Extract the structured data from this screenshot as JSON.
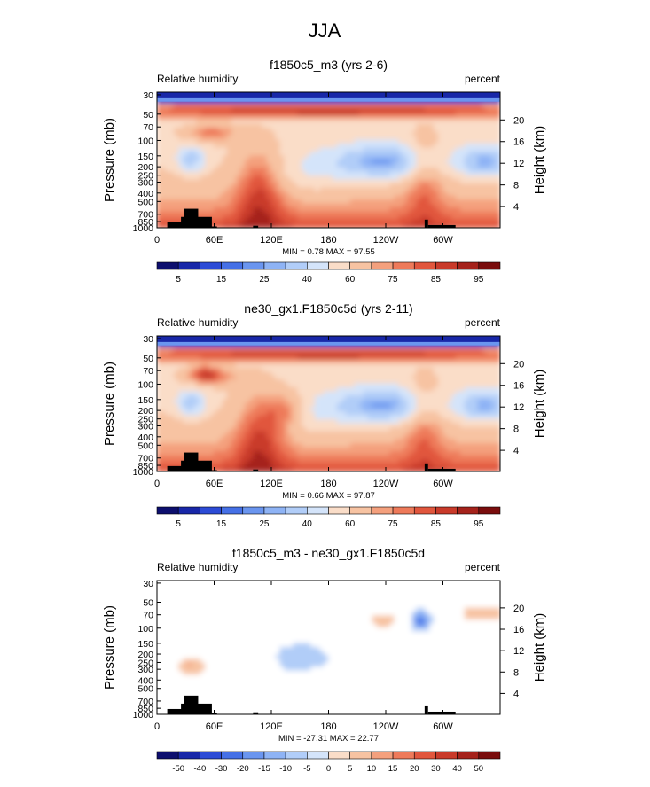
{
  "figure": {
    "title": "JJA"
  },
  "chart_data": [
    {
      "type": "heatmap",
      "title": "f1850c5_m3 (yrs 2-6)",
      "left_label": "Relative humidity",
      "right_label": "percent",
      "ylabel": "Pressure (mb)",
      "y2label": "Height (km)",
      "x_ticks": [
        "0",
        "60E",
        "120E",
        "180",
        "120W",
        "60W"
      ],
      "y_ticks": [
        "30",
        "50",
        "70",
        "100",
        "150",
        "200",
        "250",
        "300",
        "400",
        "500",
        "700",
        "850",
        "1000"
      ],
      "y2_ticks": [
        "20",
        "16",
        "12",
        "8",
        "4"
      ],
      "stats": "MIN =   0.78  MAX =  97.55",
      "colorbar_labels": [
        "5",
        "15",
        "25",
        "40",
        "60",
        "75",
        "85",
        "95"
      ],
      "levels": [
        0,
        5,
        10,
        15,
        20,
        25,
        30,
        40,
        50,
        60,
        70,
        75,
        80,
        85,
        90,
        95,
        100
      ]
    },
    {
      "type": "heatmap",
      "title": "ne30_gx1.F1850c5d (yrs 2-11)",
      "left_label": "Relative humidity",
      "right_label": "percent",
      "ylabel": "Pressure (mb)",
      "y2label": "Height (km)",
      "x_ticks": [
        "0",
        "60E",
        "120E",
        "180",
        "120W",
        "60W"
      ],
      "y_ticks": [
        "30",
        "50",
        "70",
        "100",
        "150",
        "200",
        "250",
        "300",
        "400",
        "500",
        "700",
        "850",
        "1000"
      ],
      "y2_ticks": [
        "20",
        "16",
        "12",
        "8",
        "4"
      ],
      "stats": "MIN =   0.66  MAX =  97.87",
      "colorbar_labels": [
        "5",
        "15",
        "25",
        "40",
        "60",
        "75",
        "85",
        "95"
      ],
      "levels": [
        0,
        5,
        10,
        15,
        20,
        25,
        30,
        40,
        50,
        60,
        70,
        75,
        80,
        85,
        90,
        95,
        100
      ]
    },
    {
      "type": "heatmap",
      "title": "f1850c5_m3 - ne30_gx1.F1850c5d",
      "left_label": "Relative humidity",
      "right_label": "percent",
      "ylabel": "Pressure (mb)",
      "y2label": "Height (km)",
      "x_ticks": [
        "0",
        "60E",
        "120E",
        "180",
        "120W",
        "60W"
      ],
      "y_ticks": [
        "30",
        "50",
        "70",
        "100",
        "150",
        "200",
        "250",
        "300",
        "400",
        "500",
        "700",
        "850",
        "1000"
      ],
      "y2_ticks": [
        "20",
        "16",
        "12",
        "8",
        "4"
      ],
      "stats": "MIN = -27.31  MAX =  22.77",
      "colorbar_labels": [
        "-50",
        "-40",
        "-30",
        "-20",
        "-15",
        "-10",
        "-5",
        "0",
        "5",
        "10",
        "15",
        "20",
        "30",
        "40",
        "50"
      ],
      "levels": [
        -60,
        -50,
        -40,
        -30,
        -20,
        -15,
        -10,
        -5,
        0,
        5,
        10,
        15,
        20,
        30,
        40,
        50,
        60
      ]
    }
  ],
  "colors": [
    "#0d0f6e",
    "#1827a8",
    "#2c4bd6",
    "#4570e6",
    "#6a95ef",
    "#8eb3f5",
    "#b1cdf8",
    "#d4e4fa",
    "#faddc8",
    "#f7c3a2",
    "#f4a07d",
    "#ee7a5a",
    "#e1563d",
    "#c93a2a",
    "#a5221b",
    "#7a0d0d"
  ],
  "colors_diff": [
    "#0d0f6e",
    "#1827a8",
    "#2c4bd6",
    "#4570e6",
    "#6a95ef",
    "#8eb3f5",
    "#b1cdf8",
    "#d4e4fa",
    "#faddc8",
    "#f7c3a2",
    "#f4a07d",
    "#ee7a5a",
    "#e1563d",
    "#c93a2a",
    "#a5221b",
    "#7a0d0d"
  ]
}
